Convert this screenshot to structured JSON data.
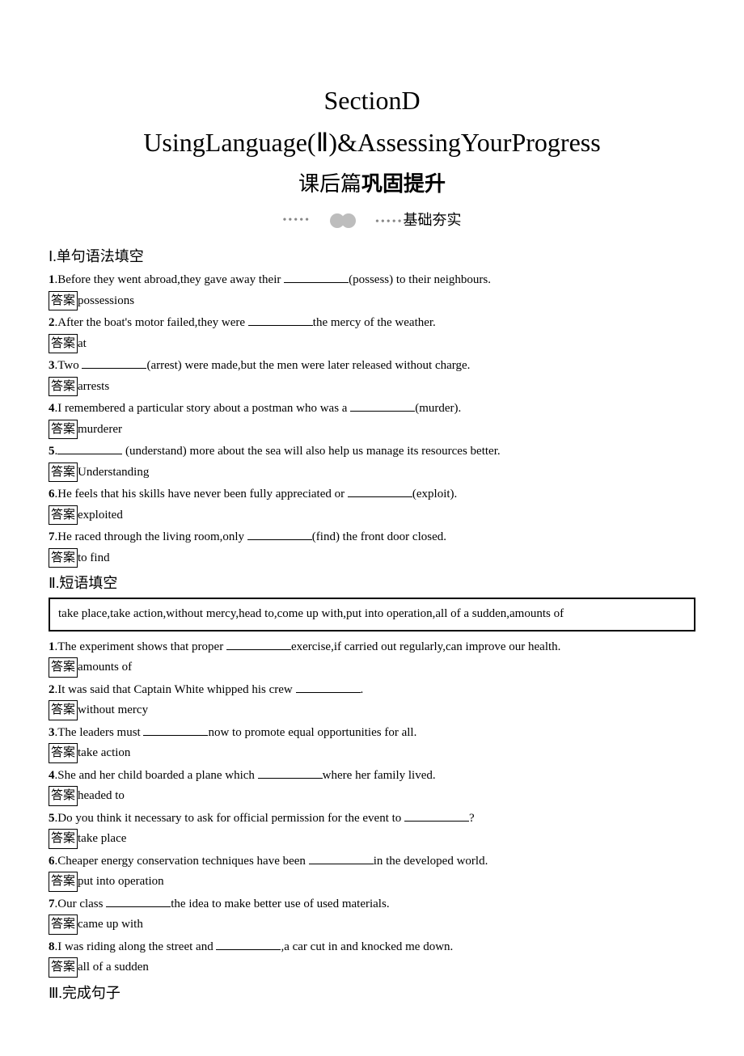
{
  "title": {
    "main": "SectionD",
    "sub": "UsingLanguage(Ⅱ)&AssessingYourProgress",
    "postLessonPrefix": "课后篇",
    "postLessonBold": "巩固提升",
    "foundation": "基础夯实"
  },
  "answerLabel": "答案",
  "section1": {
    "heading": "Ⅰ.单句语法填空",
    "items": [
      {
        "num": "1",
        "prefix": ".Before they went abroad,they gave away their ",
        "suffix": "(possess) to their neighbours.",
        "answer": "possessions"
      },
      {
        "num": "2",
        "prefix": ".After the boat's motor failed,they were ",
        "suffix": "the mercy of the weather.",
        "answer": "at"
      },
      {
        "num": "3",
        "prefix": ".Two ",
        "suffix": "(arrest) were made,but the men were later released without charge.",
        "answer": "arrests"
      },
      {
        "num": "4",
        "prefix": ".I remembered a particular story about a postman who was a ",
        "suffix": "(murder).",
        "answer": "murderer"
      },
      {
        "num": "5",
        "prefix": ".",
        "suffix": " (understand) more about the sea will also help us manage its resources better.",
        "answer": "Understanding"
      },
      {
        "num": "6",
        "prefix": ".He feels that his skills have never been fully appreciated or ",
        "suffix": "(exploit).",
        "answer": "exploited"
      },
      {
        "num": "7",
        "prefix": ".He raced through the living room,only ",
        "suffix": "(find) the front door closed.",
        "answer": "to find"
      }
    ]
  },
  "section2": {
    "heading": "Ⅱ.短语填空",
    "phraseBox": "take place,take action,without mercy,head to,come up with,put into operation,all of a sudden,amounts of",
    "items": [
      {
        "num": "1",
        "prefix": ".The experiment shows that proper ",
        "suffix": "exercise,if carried out regularly,can improve our health.",
        "answer": "amounts of"
      },
      {
        "num": "2",
        "prefix": ".It was said that Captain White whipped his crew ",
        "suffix": ".",
        "answer": "without mercy"
      },
      {
        "num": "3",
        "prefix": ".The leaders must ",
        "suffix": "now to promote equal opportunities for all.",
        "answer": "take action"
      },
      {
        "num": "4",
        "prefix": ".She and her child boarded a plane which ",
        "suffix": "where her family lived.",
        "answer": "headed to"
      },
      {
        "num": "5",
        "prefix": ".Do you think it necessary to ask for official permission for the event to ",
        "suffix": "?",
        "answer": "take place"
      },
      {
        "num": "6",
        "prefix": ".Cheaper energy conservation techniques have been ",
        "suffix": "in the developed world.",
        "answer": "put into operation"
      },
      {
        "num": "7",
        "prefix": ".Our class ",
        "suffix": "the idea to make better use of used materials.",
        "answer": "came up with"
      },
      {
        "num": "8",
        "prefix": ".I was riding along the street and ",
        "suffix": ",a car cut in and knocked me down.",
        "answer": "all of a sudden"
      }
    ]
  },
  "section3": {
    "heading": "Ⅲ.完成句子"
  }
}
